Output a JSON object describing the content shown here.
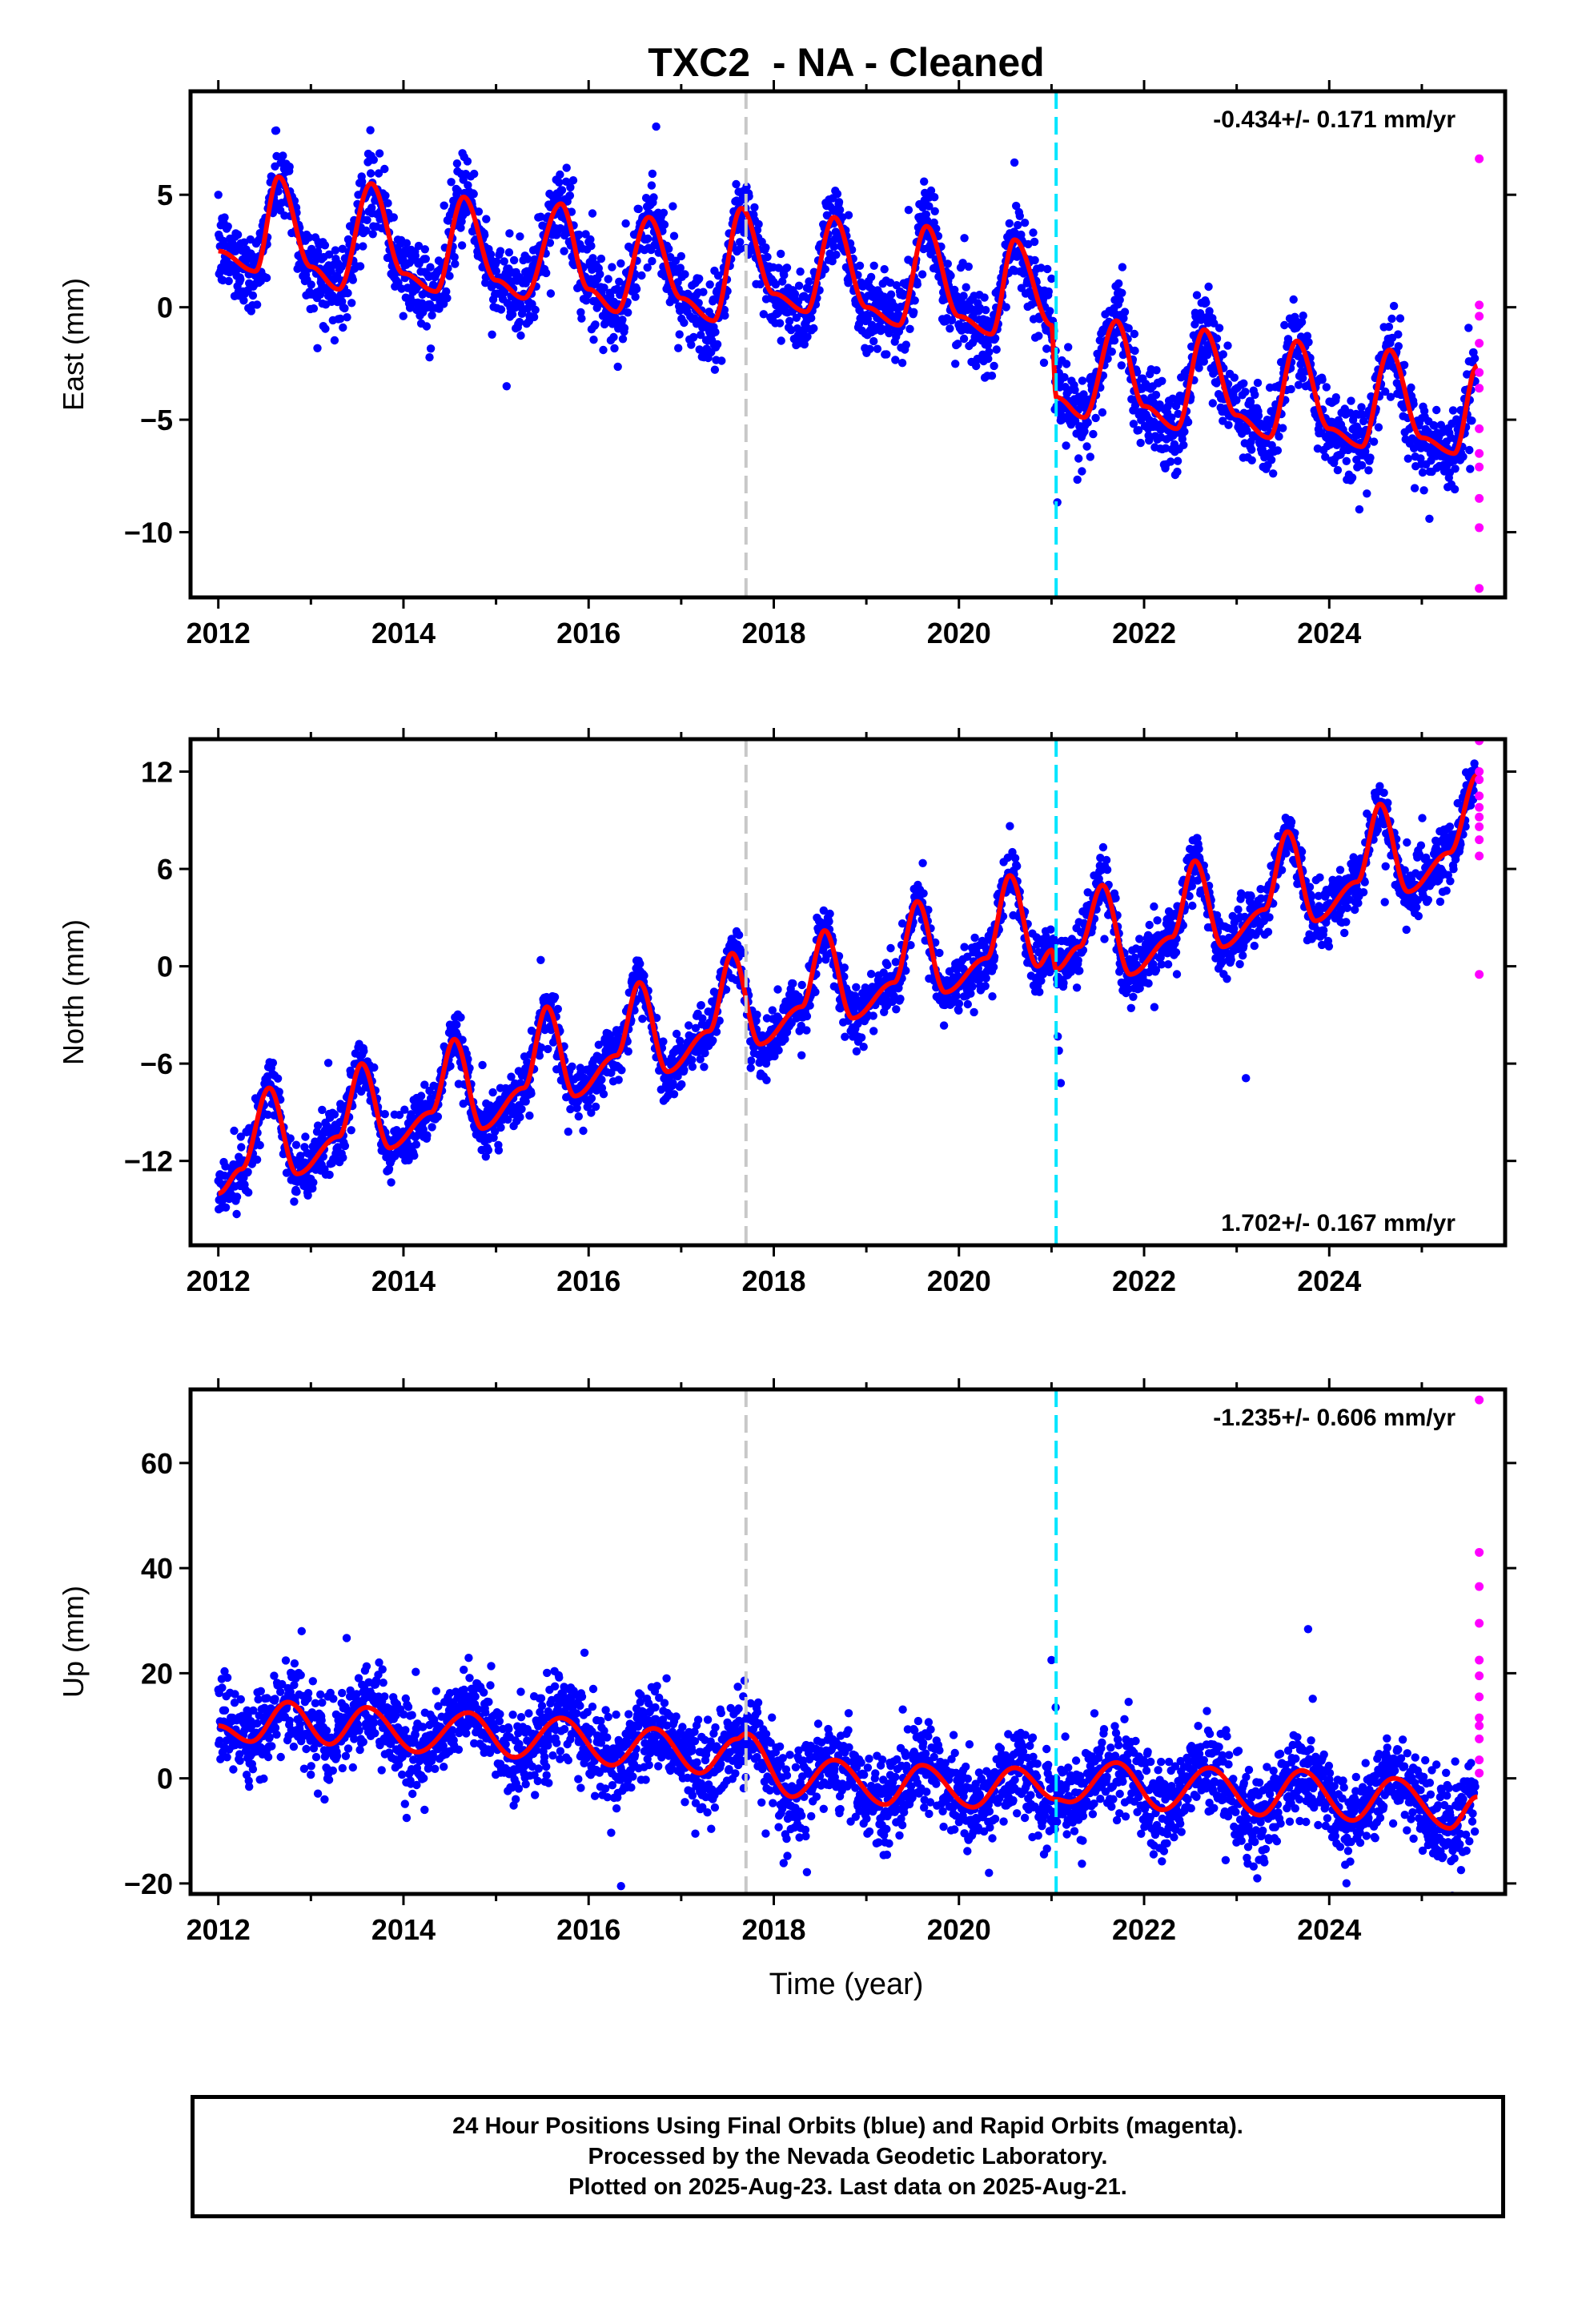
{
  "title": "TXC2  - NA - Cleaned",
  "xlabel": "Time (year)",
  "footer": {
    "line1": "24 Hour Positions Using Final Orbits (blue) and Rapid Orbits (magenta).",
    "line2": "Processed by the Nevada Geodetic Laboratory.",
    "line3": "Plotted on 2025-Aug-23. Last data on 2025-Aug-21."
  },
  "colors": {
    "final": "#0000ff",
    "rapid": "#ff00ff",
    "model": "#ff0000",
    "event_gray": "#c8c8c8",
    "event_cyan": "#00e5ff"
  },
  "chart_data": [
    {
      "type": "scatter",
      "component": "east",
      "ylabel": "East (mm)",
      "rate_label": "-0.434+/- 0.171 mm/yr",
      "rate_position": "top-right",
      "xlim": [
        2011.7,
        2025.9
      ],
      "ylim": [
        -12.9,
        9.6
      ],
      "xticks": [
        2012,
        2014,
        2016,
        2018,
        2020,
        2022,
        2024
      ],
      "yticks": [
        5,
        0,
        -5,
        -10
      ],
      "event_lines": [
        {
          "x": 2017.7,
          "style": "gray-dashed"
        },
        {
          "x": 2021.05,
          "style": "cyan-dashed"
        }
      ],
      "model": {
        "rate": -0.434,
        "step_at": 2021.05,
        "step": -2.6,
        "model_x": [
          2012.0,
          2012.4,
          2012.65,
          2013.0,
          2013.3,
          2013.65,
          2014.0,
          2014.35,
          2014.65,
          2015.0,
          2015.3,
          2015.7,
          2016.0,
          2016.3,
          2016.65,
          2017.0,
          2017.35,
          2017.65,
          2018.0,
          2018.35,
          2018.65,
          2019.0,
          2019.35,
          2019.65,
          2020.0,
          2020.35,
          2020.6,
          2021.0,
          2021.05,
          2021.35,
          2021.7,
          2022.0,
          2022.35,
          2022.65,
          2023.0,
          2023.35,
          2023.65,
          2024.0,
          2024.35,
          2024.65,
          2025.0,
          2025.35,
          2025.6
        ],
        "model_y": [
          2.5,
          1.6,
          5.8,
          1.8,
          0.8,
          5.5,
          1.5,
          0.7,
          4.9,
          1.2,
          0.4,
          4.6,
          0.8,
          -0.2,
          4.0,
          0.4,
          -0.6,
          4.4,
          0.6,
          -0.2,
          4.0,
          0.0,
          -0.8,
          3.6,
          -0.4,
          -1.2,
          3.0,
          -0.8,
          -4.0,
          -4.9,
          -0.6,
          -4.4,
          -5.4,
          -1.0,
          -4.8,
          -5.8,
          -1.5,
          -5.4,
          -6.2,
          -1.9,
          -5.8,
          -6.5,
          -2.6
        ],
        "seasonal_amp": 2.4,
        "noise_sd": 0.9
      },
      "rapid": {
        "x": 2025.62,
        "y": [
          6.6,
          0.1,
          -0.4,
          -1.6,
          -2.9,
          -3.6,
          -5.4,
          -6.5,
          -7.1,
          -8.5,
          -9.8,
          -12.5
        ]
      }
    },
    {
      "type": "scatter",
      "component": "north",
      "ylabel": "North (mm)",
      "rate_label": "1.702+/- 0.167 mm/yr",
      "rate_position": "bottom-right",
      "xlim": [
        2011.7,
        2025.9
      ],
      "ylim": [
        -17.2,
        14.0
      ],
      "xticks": [
        2012,
        2014,
        2016,
        2018,
        2020,
        2022,
        2024
      ],
      "yticks": [
        12,
        6,
        0,
        -6,
        -12
      ],
      "event_lines": [
        {
          "x": 2017.7,
          "style": "gray-dashed"
        },
        {
          "x": 2021.05,
          "style": "cyan-dashed"
        }
      ],
      "model": {
        "model_x": [
          2012.0,
          2012.25,
          2012.55,
          2012.85,
          2013.3,
          2013.55,
          2013.85,
          2014.3,
          2014.55,
          2014.85,
          2015.3,
          2015.55,
          2015.85,
          2016.3,
          2016.55,
          2016.85,
          2017.3,
          2017.55,
          2017.85,
          2018.3,
          2018.55,
          2018.85,
          2019.3,
          2019.55,
          2019.85,
          2020.3,
          2020.55,
          2020.85,
          2021.0,
          2021.05,
          2021.3,
          2021.55,
          2021.85,
          2022.3,
          2022.55,
          2022.85,
          2023.3,
          2023.55,
          2023.85,
          2024.3,
          2024.55,
          2024.85,
          2025.3,
          2025.6
        ],
        "model_y": [
          -14.0,
          -12.5,
          -7.5,
          -12.8,
          -10.5,
          -6.0,
          -11.2,
          -9.0,
          -4.5,
          -10.0,
          -7.5,
          -2.5,
          -8.0,
          -5.5,
          -1.0,
          -6.5,
          -4.0,
          0.8,
          -4.8,
          -2.5,
          2.2,
          -3.2,
          -1.0,
          4.0,
          -1.6,
          0.5,
          5.6,
          0.0,
          1.0,
          -0.2,
          1.2,
          5.0,
          -0.5,
          1.8,
          6.5,
          1.2,
          3.5,
          8.3,
          2.8,
          5.2,
          10.0,
          4.6,
          7.0,
          11.8
        ],
        "noise_sd": 0.85
      },
      "outliers": [
        {
          "x": 2021.1,
          "y": -7.2
        },
        {
          "x": 2021.08,
          "y": -5.2
        },
        {
          "x": 2023.1,
          "y": -6.9
        }
      ],
      "rapid": {
        "x": 2025.62,
        "y": [
          13.9,
          12.0,
          11.5,
          10.5,
          9.8,
          9.2,
          8.6,
          7.8,
          6.8,
          -0.5
        ]
      }
    },
    {
      "type": "scatter",
      "component": "up",
      "ylabel": "Up (mm)",
      "rate_label": "-1.235+/- 0.606 mm/yr",
      "rate_position": "top-right",
      "xlim": [
        2011.7,
        2025.9
      ],
      "ylim": [
        -22.0,
        74.0
      ],
      "xticks": [
        2012,
        2014,
        2016,
        2018,
        2020,
        2022,
        2024
      ],
      "yticks": [
        60,
        40,
        20,
        0,
        -20
      ],
      "event_lines": [
        {
          "x": 2017.7,
          "style": "gray-dashed"
        },
        {
          "x": 2021.05,
          "style": "cyan-dashed"
        }
      ],
      "model": {
        "model_x": [
          2012.0,
          2012.35,
          2012.75,
          2013.2,
          2013.6,
          2014.15,
          2014.7,
          2015.2,
          2015.7,
          2016.25,
          2016.7,
          2017.2,
          2017.6,
          2017.7,
          2018.2,
          2018.65,
          2019.2,
          2019.6,
          2020.15,
          2020.6,
          2021.05,
          2021.2,
          2021.7,
          2022.2,
          2022.7,
          2023.25,
          2023.7,
          2024.25,
          2024.7,
          2025.3,
          2025.6
        ],
        "model_y": [
          10.0,
          7.0,
          14.5,
          6.5,
          13.5,
          5.0,
          12.5,
          4.0,
          11.5,
          2.5,
          9.5,
          1.0,
          7.5,
          8.5,
          -3.5,
          3.5,
          -5.0,
          2.5,
          -5.5,
          2.0,
          -4.0,
          -4.5,
          3.0,
          -6.0,
          2.0,
          -7.0,
          1.5,
          -8.0,
          0.0,
          -9.5,
          -3.5
        ],
        "noise_sd": 4.2
      },
      "outliers": [
        {
          "x": 2016.35,
          "y": -20.5
        },
        {
          "x": 2021.0,
          "y": 22.5
        },
        {
          "x": 2012.9,
          "y": 28.0
        }
      ],
      "rapid": {
        "x": 2025.62,
        "y": [
          72.0,
          43.0,
          36.5,
          29.5,
          22.5,
          19.5,
          15.5,
          11.5,
          10.0,
          7.5,
          3.5,
          1.0
        ]
      }
    }
  ]
}
